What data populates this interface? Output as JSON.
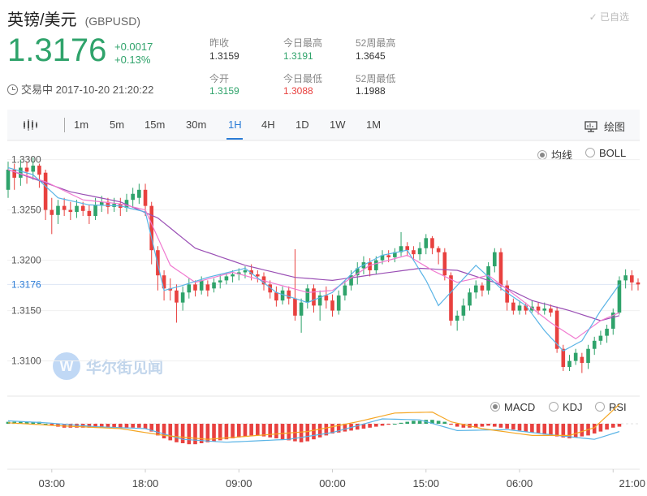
{
  "header": {
    "name": "英镑/美元",
    "code": "(GBPUSD)",
    "watch_label": "已自选",
    "price": "1.3176",
    "change_abs": "+0.0017",
    "change_pct": "+0.13%",
    "status": "交易中 2017-10-20 21:20:22"
  },
  "stats": [
    {
      "label": "昨收",
      "value": "1.3159",
      "tone": "neutral"
    },
    {
      "label": "今日最高",
      "value": "1.3191",
      "tone": "green"
    },
    {
      "label": "52周最高",
      "value": "1.3645",
      "tone": "neutral"
    },
    {
      "label": "今开",
      "value": "1.3159",
      "tone": "green"
    },
    {
      "label": "今日最低",
      "value": "1.3088",
      "tone": "red"
    },
    {
      "label": "52周最低",
      "value": "1.1988",
      "tone": "neutral"
    }
  ],
  "toolbar": {
    "tabs": [
      "1m",
      "5m",
      "15m",
      "30m",
      "1H",
      "4H",
      "1D",
      "1W",
      "1M"
    ],
    "active_tab": "1H",
    "draw_label": "绘图"
  },
  "overlay_options": {
    "ma": "均线",
    "boll": "BOLL",
    "selected": "均线"
  },
  "indicator_options": {
    "macd": "MACD",
    "kdj": "KDJ",
    "rsi": "RSI",
    "selected": "MACD"
  },
  "watermark": "华尔街见闻",
  "colors": {
    "up": "#2fa36b",
    "down": "#e8413f",
    "accent": "#2a7bd6",
    "ma_fast": "#5ab4e6",
    "ma_mid": "#f07ad0",
    "ma_slow": "#9a4fb5",
    "macd_dea": "#f5a623"
  },
  "chart_data": {
    "type": "candlestick",
    "y_ticks": [
      1.33,
      1.325,
      1.32,
      1.315,
      1.31
    ],
    "y_tick_labels": [
      "1.3300",
      "1.3250",
      "1.3200",
      "1.3150",
      "1.3100"
    ],
    "ylim": [
      1.3065,
      1.3315
    ],
    "current_price": 1.3176,
    "current_label": "1.3176",
    "x_labels": [
      "03:00",
      "18:00",
      "09:00",
      "00:00",
      "15:00",
      "06:00",
      "21:00"
    ],
    "x_label_index": [
      7,
      22,
      37,
      52,
      67,
      82,
      97
    ],
    "ma_fast_anchors": [
      [
        0,
        1.3292
      ],
      [
        4,
        1.3285
      ],
      [
        8,
        1.3262
      ],
      [
        13,
        1.3255
      ],
      [
        18,
        1.3254
      ],
      [
        22,
        1.3248
      ],
      [
        25,
        1.317
      ],
      [
        28,
        1.3175
      ],
      [
        32,
        1.3183
      ],
      [
        38,
        1.3192
      ],
      [
        43,
        1.3168
      ],
      [
        48,
        1.3158
      ],
      [
        52,
        1.3168
      ],
      [
        56,
        1.3192
      ],
      [
        60,
        1.3205
      ],
      [
        64,
        1.321
      ],
      [
        67,
        1.318
      ],
      [
        69,
        1.3155
      ],
      [
        72,
        1.3175
      ],
      [
        75,
        1.3195
      ],
      [
        79,
        1.3172
      ],
      [
        83,
        1.3155
      ],
      [
        86,
        1.313
      ],
      [
        89,
        1.311
      ],
      [
        92,
        1.312
      ],
      [
        95,
        1.315
      ],
      [
        98,
        1.3176
      ]
    ],
    "ma_mid_anchors": [
      [
        0,
        1.329
      ],
      [
        6,
        1.3278
      ],
      [
        12,
        1.326
      ],
      [
        18,
        1.3256
      ],
      [
        22,
        1.325
      ],
      [
        26,
        1.3195
      ],
      [
        30,
        1.3178
      ],
      [
        36,
        1.3188
      ],
      [
        42,
        1.3178
      ],
      [
        48,
        1.3168
      ],
      [
        52,
        1.317
      ],
      [
        58,
        1.3195
      ],
      [
        64,
        1.3205
      ],
      [
        68,
        1.319
      ],
      [
        72,
        1.3178
      ],
      [
        77,
        1.3185
      ],
      [
        82,
        1.3162
      ],
      [
        87,
        1.3138
      ],
      [
        91,
        1.3122
      ],
      [
        95,
        1.314
      ],
      [
        98,
        1.3148
      ]
    ],
    "ma_slow_anchors": [
      [
        0,
        1.329
      ],
      [
        10,
        1.3268
      ],
      [
        18,
        1.3258
      ],
      [
        24,
        1.3242
      ],
      [
        30,
        1.3212
      ],
      [
        38,
        1.3195
      ],
      [
        46,
        1.3183
      ],
      [
        52,
        1.318
      ],
      [
        60,
        1.3187
      ],
      [
        66,
        1.3192
      ],
      [
        72,
        1.319
      ],
      [
        78,
        1.3178
      ],
      [
        84,
        1.316
      ],
      [
        90,
        1.315
      ],
      [
        95,
        1.314
      ],
      [
        98,
        1.3145
      ]
    ],
    "candles": [
      [
        1.327,
        1.329,
        1.3298,
        1.3262
      ],
      [
        1.329,
        1.3282,
        1.3296,
        1.327
      ],
      [
        1.3282,
        1.3292,
        1.33,
        1.3274
      ],
      [
        1.3292,
        1.3288,
        1.3298,
        1.3276
      ],
      [
        1.3288,
        1.3294,
        1.3302,
        1.328
      ],
      [
        1.3294,
        1.3285,
        1.3296,
        1.3272
      ],
      [
        1.3287,
        1.325,
        1.329,
        1.324
      ],
      [
        1.325,
        1.3245,
        1.3262,
        1.3226
      ],
      [
        1.3245,
        1.3254,
        1.326,
        1.3236
      ],
      [
        1.3254,
        1.325,
        1.3262,
        1.3244
      ],
      [
        1.325,
        1.3248,
        1.3258,
        1.324
      ],
      [
        1.3248,
        1.3254,
        1.326,
        1.3242
      ],
      [
        1.3254,
        1.3249,
        1.3258,
        1.3244
      ],
      [
        1.3249,
        1.3244,
        1.3255,
        1.3236
      ],
      [
        1.3244,
        1.3255,
        1.3262,
        1.324
      ],
      [
        1.3255,
        1.3258,
        1.3264,
        1.3248
      ],
      [
        1.3258,
        1.3253,
        1.3262,
        1.3246
      ],
      [
        1.3253,
        1.3256,
        1.3262,
        1.3248
      ],
      [
        1.3256,
        1.3252,
        1.3262,
        1.3244
      ],
      [
        1.3252,
        1.326,
        1.3266,
        1.3248
      ],
      [
        1.326,
        1.3266,
        1.3272,
        1.3252
      ],
      [
        1.3262,
        1.327,
        1.3276,
        1.3256
      ],
      [
        1.327,
        1.3254,
        1.3276,
        1.3244
      ],
      [
        1.3254,
        1.321,
        1.3258,
        1.3196
      ],
      [
        1.321,
        1.3185,
        1.3214,
        1.317
      ],
      [
        1.3185,
        1.3172,
        1.319,
        1.316
      ],
      [
        1.3172,
        1.317,
        1.3182,
        1.316
      ],
      [
        1.317,
        1.3158,
        1.3176,
        1.3138
      ],
      [
        1.3158,
        1.3168,
        1.3174,
        1.315
      ],
      [
        1.3168,
        1.3176,
        1.3182,
        1.3162
      ],
      [
        1.3176,
        1.317,
        1.318,
        1.3164
      ],
      [
        1.317,
        1.318,
        1.3184,
        1.3166
      ],
      [
        1.3176,
        1.317,
        1.318,
        1.3164
      ],
      [
        1.3172,
        1.3178,
        1.3182,
        1.3168
      ],
      [
        1.3178,
        1.318,
        1.3186,
        1.3172
      ],
      [
        1.318,
        1.3184,
        1.3188,
        1.3176
      ],
      [
        1.3184,
        1.3186,
        1.319,
        1.3178
      ],
      [
        1.3186,
        1.3188,
        1.3192,
        1.318
      ],
      [
        1.3188,
        1.319,
        1.3194,
        1.3182
      ],
      [
        1.319,
        1.3186,
        1.3196,
        1.318
      ],
      [
        1.3186,
        1.3184,
        1.319,
        1.3178
      ],
      [
        1.3184,
        1.3176,
        1.3188,
        1.317
      ],
      [
        1.3176,
        1.3168,
        1.318,
        1.3162
      ],
      [
        1.3168,
        1.316,
        1.3174,
        1.3154
      ],
      [
        1.316,
        1.317,
        1.3174,
        1.3156
      ],
      [
        1.317,
        1.3162,
        1.3174,
        1.3156
      ],
      [
        1.3162,
        1.3145,
        1.3211,
        1.314
      ],
      [
        1.3145,
        1.3158,
        1.3162,
        1.3128
      ],
      [
        1.3158,
        1.3172,
        1.3176,
        1.3152
      ],
      [
        1.3172,
        1.3155,
        1.3176,
        1.3148
      ],
      [
        1.3155,
        1.3165,
        1.317,
        1.314
      ],
      [
        1.3165,
        1.316,
        1.3174,
        1.3152
      ],
      [
        1.316,
        1.315,
        1.3166,
        1.3144
      ],
      [
        1.315,
        1.3165,
        1.317,
        1.3146
      ],
      [
        1.3165,
        1.3175,
        1.318,
        1.316
      ],
      [
        1.3175,
        1.3185,
        1.319,
        1.317
      ],
      [
        1.3185,
        1.3192,
        1.3198,
        1.3176
      ],
      [
        1.3192,
        1.3198,
        1.3204,
        1.3186
      ],
      [
        1.3198,
        1.319,
        1.3202,
        1.3184
      ],
      [
        1.319,
        1.32,
        1.3204,
        1.3186
      ],
      [
        1.32,
        1.3205,
        1.321,
        1.3196
      ],
      [
        1.3205,
        1.3203,
        1.321,
        1.3198
      ],
      [
        1.3203,
        1.3208,
        1.3212,
        1.3198
      ],
      [
        1.3208,
        1.3214,
        1.3228,
        1.3204
      ],
      [
        1.3214,
        1.321,
        1.3218,
        1.3204
      ],
      [
        1.321,
        1.3206,
        1.3214,
        1.32
      ],
      [
        1.3206,
        1.3212,
        1.3218,
        1.32
      ],
      [
        1.3212,
        1.3222,
        1.3226,
        1.3206
      ],
      [
        1.3222,
        1.3212,
        1.3224,
        1.3206
      ],
      [
        1.3212,
        1.3208,
        1.3214,
        1.3196
      ],
      [
        1.3208,
        1.3185,
        1.3212,
        1.318
      ],
      [
        1.3185,
        1.314,
        1.3188,
        1.3135
      ],
      [
        1.314,
        1.3145,
        1.315,
        1.313
      ],
      [
        1.3145,
        1.3155,
        1.3162,
        1.314
      ],
      [
        1.3155,
        1.3168,
        1.3172,
        1.315
      ],
      [
        1.3168,
        1.3175,
        1.318,
        1.3162
      ],
      [
        1.3175,
        1.317,
        1.3178,
        1.3164
      ],
      [
        1.317,
        1.3194,
        1.3198,
        1.3166
      ],
      [
        1.3194,
        1.3208,
        1.3212,
        1.3188
      ],
      [
        1.3208,
        1.3175,
        1.3212,
        1.317
      ],
      [
        1.3175,
        1.3158,
        1.318,
        1.315
      ],
      [
        1.3158,
        1.315,
        1.3162,
        1.3146
      ],
      [
        1.315,
        1.3155,
        1.316,
        1.3146
      ],
      [
        1.3155,
        1.315,
        1.3158,
        1.3146
      ],
      [
        1.315,
        1.3154,
        1.316,
        1.3148
      ],
      [
        1.3154,
        1.315,
        1.3158,
        1.3146
      ],
      [
        1.315,
        1.3152,
        1.3158,
        1.3146
      ],
      [
        1.3152,
        1.3148,
        1.3156,
        1.3144
      ],
      [
        1.315,
        1.3112,
        1.3154,
        1.3108
      ],
      [
        1.3112,
        1.3094,
        1.3116,
        1.309
      ],
      [
        1.3094,
        1.31,
        1.3106,
        1.309
      ],
      [
        1.31,
        1.3108,
        1.3112,
        1.3096
      ],
      [
        1.3104,
        1.3098,
        1.3108,
        1.3088
      ],
      [
        1.3098,
        1.3112,
        1.3116,
        1.3092
      ],
      [
        1.3112,
        1.312,
        1.3124,
        1.3106
      ],
      [
        1.312,
        1.3125,
        1.313,
        1.3116
      ],
      [
        1.3125,
        1.3132,
        1.3136,
        1.3118
      ],
      [
        1.3132,
        1.3148,
        1.3152,
        1.3126
      ],
      [
        1.3148,
        1.318,
        1.3184,
        1.3146
      ],
      [
        1.318,
        1.3185,
        1.3191,
        1.3172
      ],
      [
        1.3185,
        1.3178,
        1.319,
        1.317
      ],
      [
        1.3178,
        1.3176,
        1.3182,
        1.317
      ]
    ],
    "macd_hist": [
      0.2,
      0.2,
      0.2,
      0.2,
      0.2,
      0.2,
      0.0,
      -0.2,
      -0.3,
      -0.4,
      -0.4,
      -0.4,
      -0.4,
      -0.4,
      -0.4,
      -0.4,
      -0.4,
      -0.4,
      -0.4,
      -0.4,
      -0.4,
      -0.4,
      -0.5,
      -0.8,
      -1.2,
      -1.5,
      -1.7,
      -1.9,
      -2.0,
      -2.1,
      -2.1,
      -2.0,
      -1.9,
      -1.8,
      -1.7,
      -1.6,
      -1.5,
      -1.4,
      -1.3,
      -1.2,
      -1.2,
      -1.3,
      -1.4,
      -1.5,
      -1.6,
      -1.7,
      -1.8,
      -1.9,
      -1.8,
      -1.6,
      -1.4,
      -1.2,
      -1.0,
      -0.9,
      -0.8,
      -0.7,
      -0.6,
      -0.5,
      -0.4,
      -0.3,
      -0.2,
      -0.1,
      0.0,
      0.1,
      0.2,
      0.3,
      0.3,
      0.4,
      0.4,
      0.3,
      0.2,
      -0.1,
      -0.3,
      -0.4,
      -0.4,
      -0.4,
      -0.3,
      -0.2,
      -0.3,
      -0.4,
      -0.5,
      -0.6,
      -0.7,
      -0.8,
      -0.9,
      -1.0,
      -1.1,
      -1.2,
      -1.3,
      -1.4,
      -1.5,
      -1.4,
      -1.3,
      -1.2,
      -1.0,
      -0.8,
      -0.6,
      -0.4,
      -0.3
    ],
    "macd_dif_anchors": [
      [
        0,
        0.3
      ],
      [
        6,
        0.1
      ],
      [
        14,
        -0.3
      ],
      [
        22,
        -0.5
      ],
      [
        28,
        -1.6
      ],
      [
        35,
        -1.9
      ],
      [
        45,
        -1.6
      ],
      [
        52,
        -0.9
      ],
      [
        60,
        0.5
      ],
      [
        66,
        0.4
      ],
      [
        72,
        -0.7
      ],
      [
        80,
        -0.6
      ],
      [
        88,
        -1.2
      ],
      [
        94,
        -1.6
      ],
      [
        98,
        -0.8
      ]
    ],
    "macd_dea_anchors": [
      [
        0,
        0.1
      ],
      [
        8,
        -0.2
      ],
      [
        18,
        -0.5
      ],
      [
        25,
        -1.2
      ],
      [
        32,
        -1.6
      ],
      [
        40,
        -1.2
      ],
      [
        48,
        -0.8
      ],
      [
        56,
        0.2
      ],
      [
        62,
        1.1
      ],
      [
        68,
        1.2
      ],
      [
        71,
        0.2
      ],
      [
        76,
        -0.5
      ],
      [
        84,
        -1.2
      ],
      [
        90,
        -1.2
      ],
      [
        94,
        -0.4
      ],
      [
        98,
        2.0
      ]
    ]
  }
}
